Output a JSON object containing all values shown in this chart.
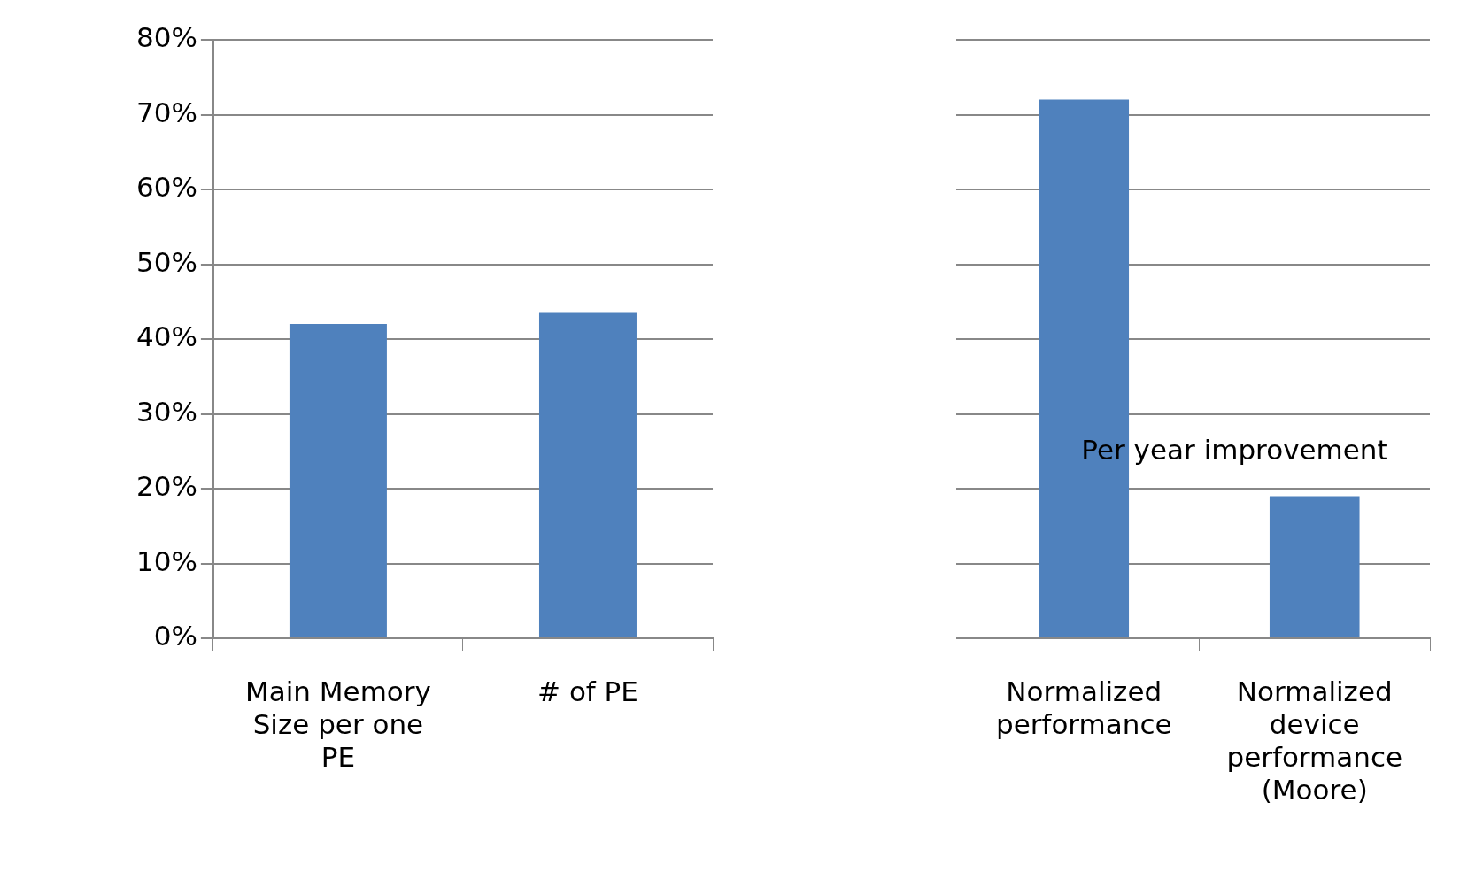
{
  "chart_data": [
    {
      "type": "bar",
      "categories": [
        "Main Memory Size per one PE",
        "# of PE"
      ],
      "values": [
        42,
        43.5
      ],
      "color": "#4f81bd",
      "ylim": [
        0,
        80
      ],
      "yticks": [
        {
          "value": 0,
          "label": "0%"
        },
        {
          "value": 10,
          "label": "10%"
        },
        {
          "value": 20,
          "label": "20%"
        },
        {
          "value": 30,
          "label": "30%"
        },
        {
          "value": 40,
          "label": "40%"
        },
        {
          "value": 50,
          "label": "50%"
        },
        {
          "value": 60,
          "label": "60%"
        },
        {
          "value": 70,
          "label": "70%"
        },
        {
          "value": 80,
          "label": "80%"
        }
      ],
      "grid": "y"
    },
    {
      "type": "bar",
      "categories": [
        "Normalized performance",
        "Normalized device performance (Moore)"
      ],
      "values": [
        72,
        19
      ],
      "color": "#4f81bd",
      "ylim": [
        0,
        80
      ],
      "yticks": [
        {
          "value": 0,
          "label": null
        },
        {
          "value": 10,
          "label": null
        },
        {
          "value": 20,
          "label": null
        },
        {
          "value": 30,
          "label": null
        },
        {
          "value": 40,
          "label": null
        },
        {
          "value": 50,
          "label": null
        },
        {
          "value": 60,
          "label": null
        },
        {
          "value": 70,
          "label": null
        },
        {
          "value": 80,
          "label": null
        }
      ],
      "grid": "y",
      "tick_labels": "x",
      "annotations": [
        "Per year improvement"
      ]
    }
  ]
}
